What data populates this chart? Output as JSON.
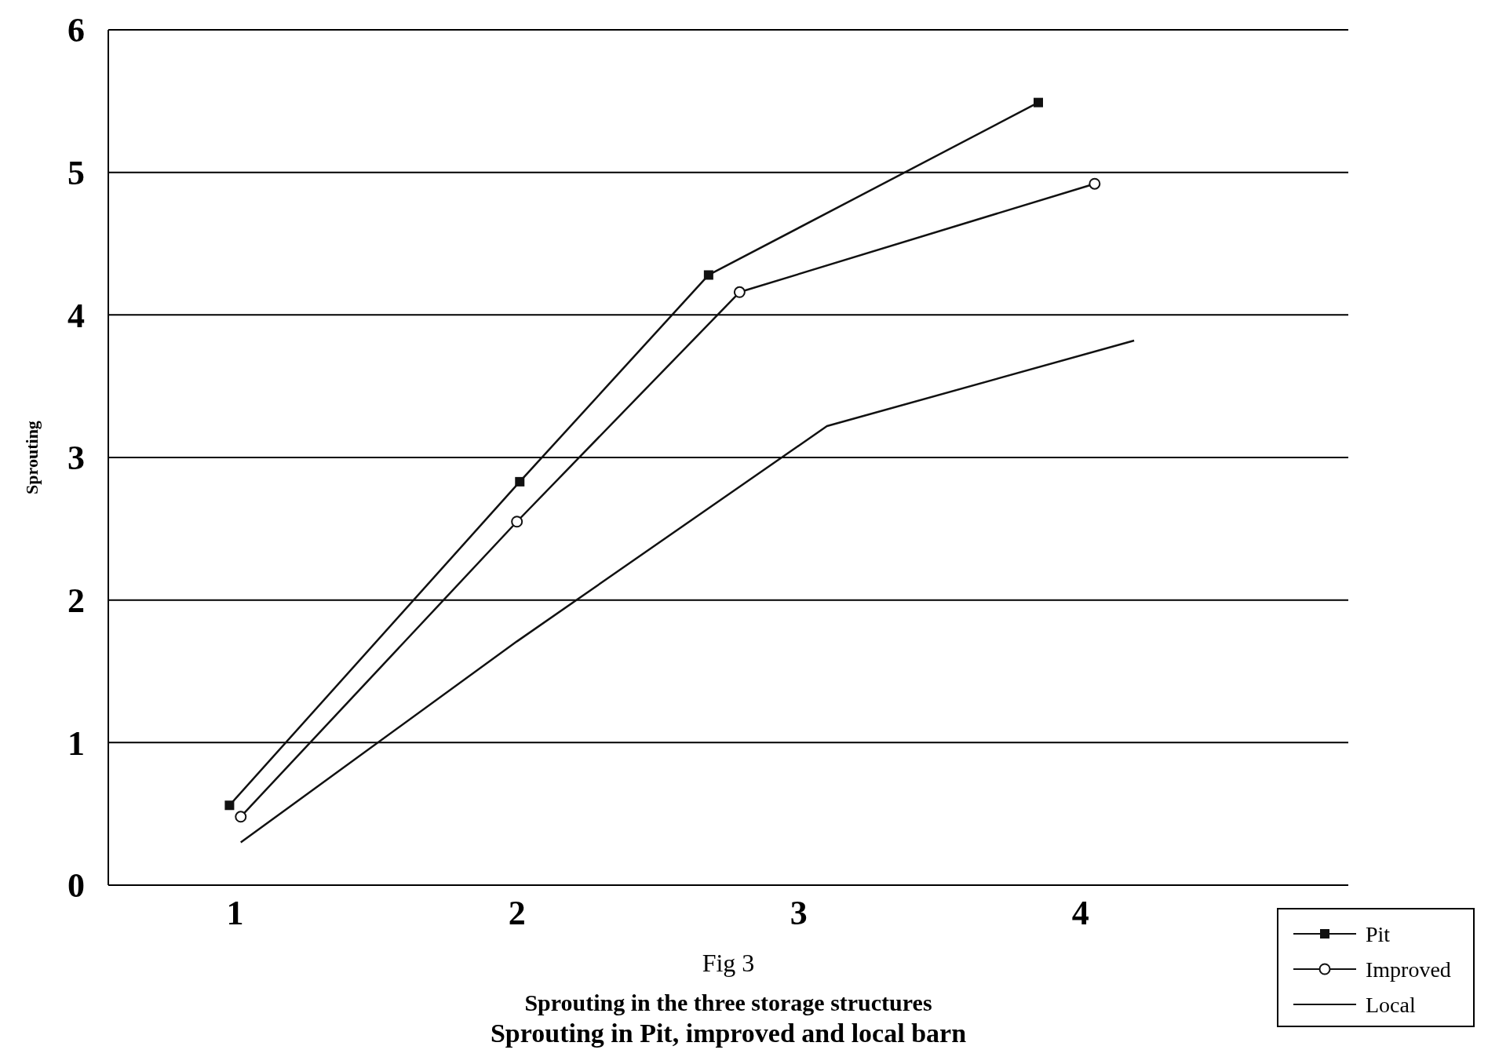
{
  "chart_data": {
    "type": "line",
    "title": "Sprouting in Pit, improved and local barn",
    "subtitle": "Sprouting in the three storage structures",
    "annotations": [
      "Fig 3"
    ],
    "ylabel": "Sprouting",
    "xlim": [
      0.55,
      4.95
    ],
    "xticks": [
      1,
      2,
      3,
      4
    ],
    "ylim": [
      0,
      6
    ],
    "yticks": [
      0,
      1,
      2,
      3,
      4,
      5,
      6
    ],
    "grid": "y",
    "legend": "bottom right",
    "series": [
      {
        "name": "Pit",
        "color": "#111111",
        "marker": "square",
        "x": [
          0.98,
          2.01,
          2.68,
          3.85
        ],
        "values": [
          0.56,
          2.83,
          4.28,
          5.49
        ]
      },
      {
        "name": "Improved",
        "color": "#111111",
        "marker": "circle",
        "x": [
          1.02,
          2.0,
          2.79,
          4.05
        ],
        "values": [
          0.48,
          2.55,
          4.16,
          4.92
        ]
      },
      {
        "name": "Local",
        "color": "#111111",
        "marker": "none",
        "x": [
          1.02,
          2.0,
          3.1,
          4.19
        ],
        "values": [
          0.3,
          1.71,
          3.22,
          3.82
        ]
      }
    ]
  }
}
